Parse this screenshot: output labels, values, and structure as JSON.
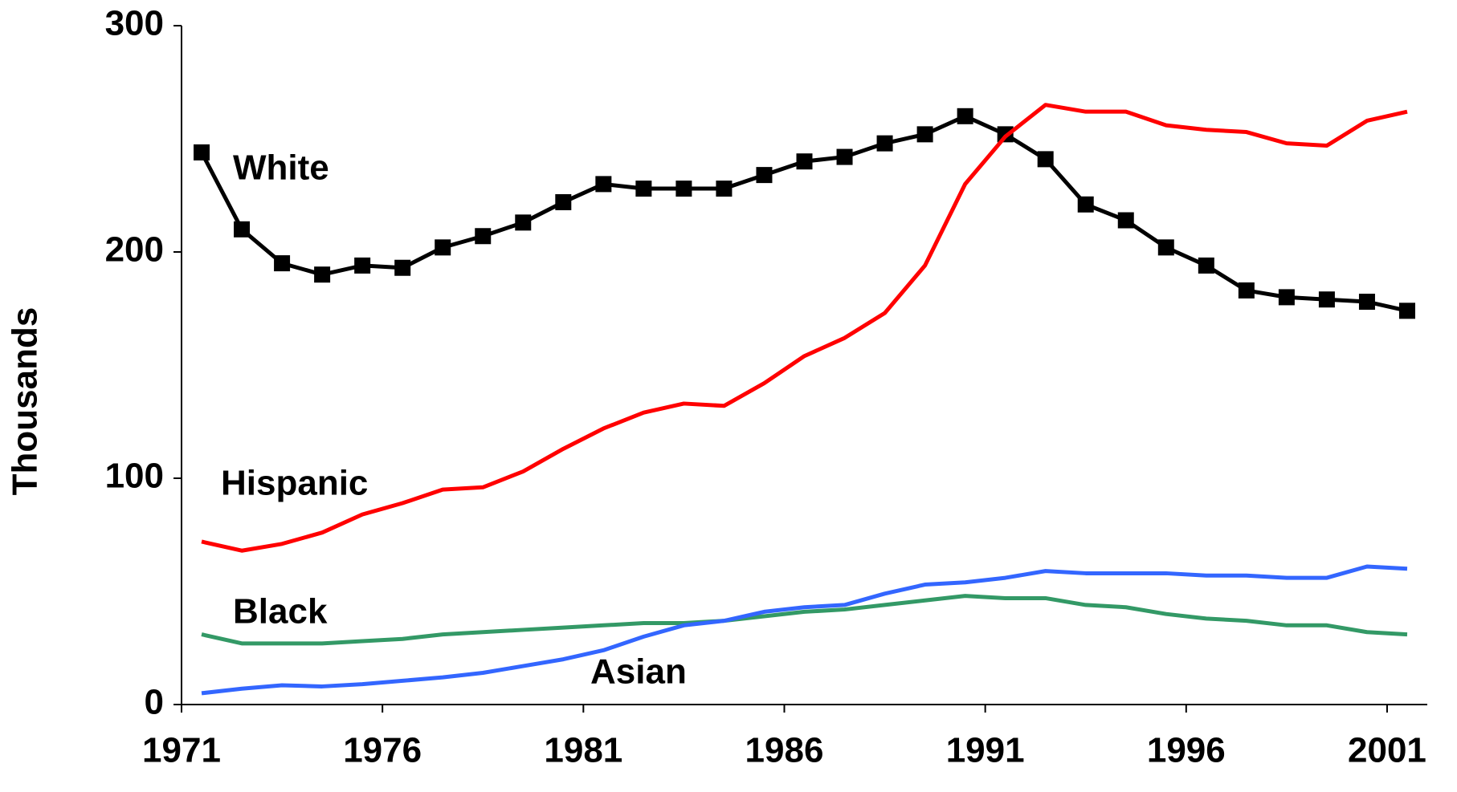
{
  "chart_data": {
    "type": "line",
    "y_label": "Thousands",
    "xlim": [
      1971,
      2002
    ],
    "xticks": [
      1971,
      1976,
      1981,
      1986,
      1991,
      1996,
      2001
    ],
    "ylim": [
      0,
      300
    ],
    "yticks": [
      0,
      100,
      200,
      300
    ],
    "x": [
      1971.5,
      1972.5,
      1973.5,
      1974.5,
      1975.5,
      1976.5,
      1977.5,
      1978.5,
      1979.5,
      1980.5,
      1981.5,
      1982.5,
      1983.5,
      1984.5,
      1985.5,
      1986.5,
      1987.5,
      1988.5,
      1989.5,
      1990.5,
      1991.5,
      1992.5,
      1993.5,
      1994.5,
      1995.5,
      1996.5,
      1997.5,
      1998.5,
      1999.5,
      2000.5,
      2001.5
    ],
    "series": [
      {
        "name": "White",
        "color": "#000000",
        "marker": "square",
        "values": [
          244,
          210,
          195,
          190,
          194,
          193,
          202,
          207,
          213,
          222,
          230,
          228,
          228,
          228,
          234,
          240,
          242,
          248,
          252,
          260,
          252,
          241,
          221,
          214,
          202,
          194,
          183,
          180,
          179,
          178,
          174
        ]
      },
      {
        "name": "Hispanic",
        "color": "#ff0000",
        "values": [
          72,
          68,
          71,
          76,
          84,
          89,
          95,
          96,
          103,
          113,
          122,
          129,
          133,
          132,
          142,
          154,
          162,
          173,
          194,
          230,
          251,
          265,
          262,
          262,
          256,
          254,
          253,
          248,
          247,
          258,
          262
        ]
      },
      {
        "name": "Black",
        "color": "#339966",
        "values": [
          31,
          27,
          27,
          27,
          28,
          29,
          31,
          32,
          33,
          34,
          35,
          36,
          36,
          37,
          39,
          41,
          42,
          44,
          46,
          48,
          47,
          47,
          44,
          43,
          40,
          38,
          37,
          35,
          35,
          32,
          31
        ]
      },
      {
        "name": "Asian",
        "color": "#3366ff",
        "values": [
          5,
          7,
          8.5,
          8,
          9,
          10.5,
          12,
          14,
          17,
          20,
          24,
          30,
          35,
          37,
          41,
          43,
          44,
          49,
          53,
          54,
          56,
          59,
          58,
          58,
          58,
          57,
          57,
          56,
          56,
          61,
          60
        ]
      }
    ]
  }
}
